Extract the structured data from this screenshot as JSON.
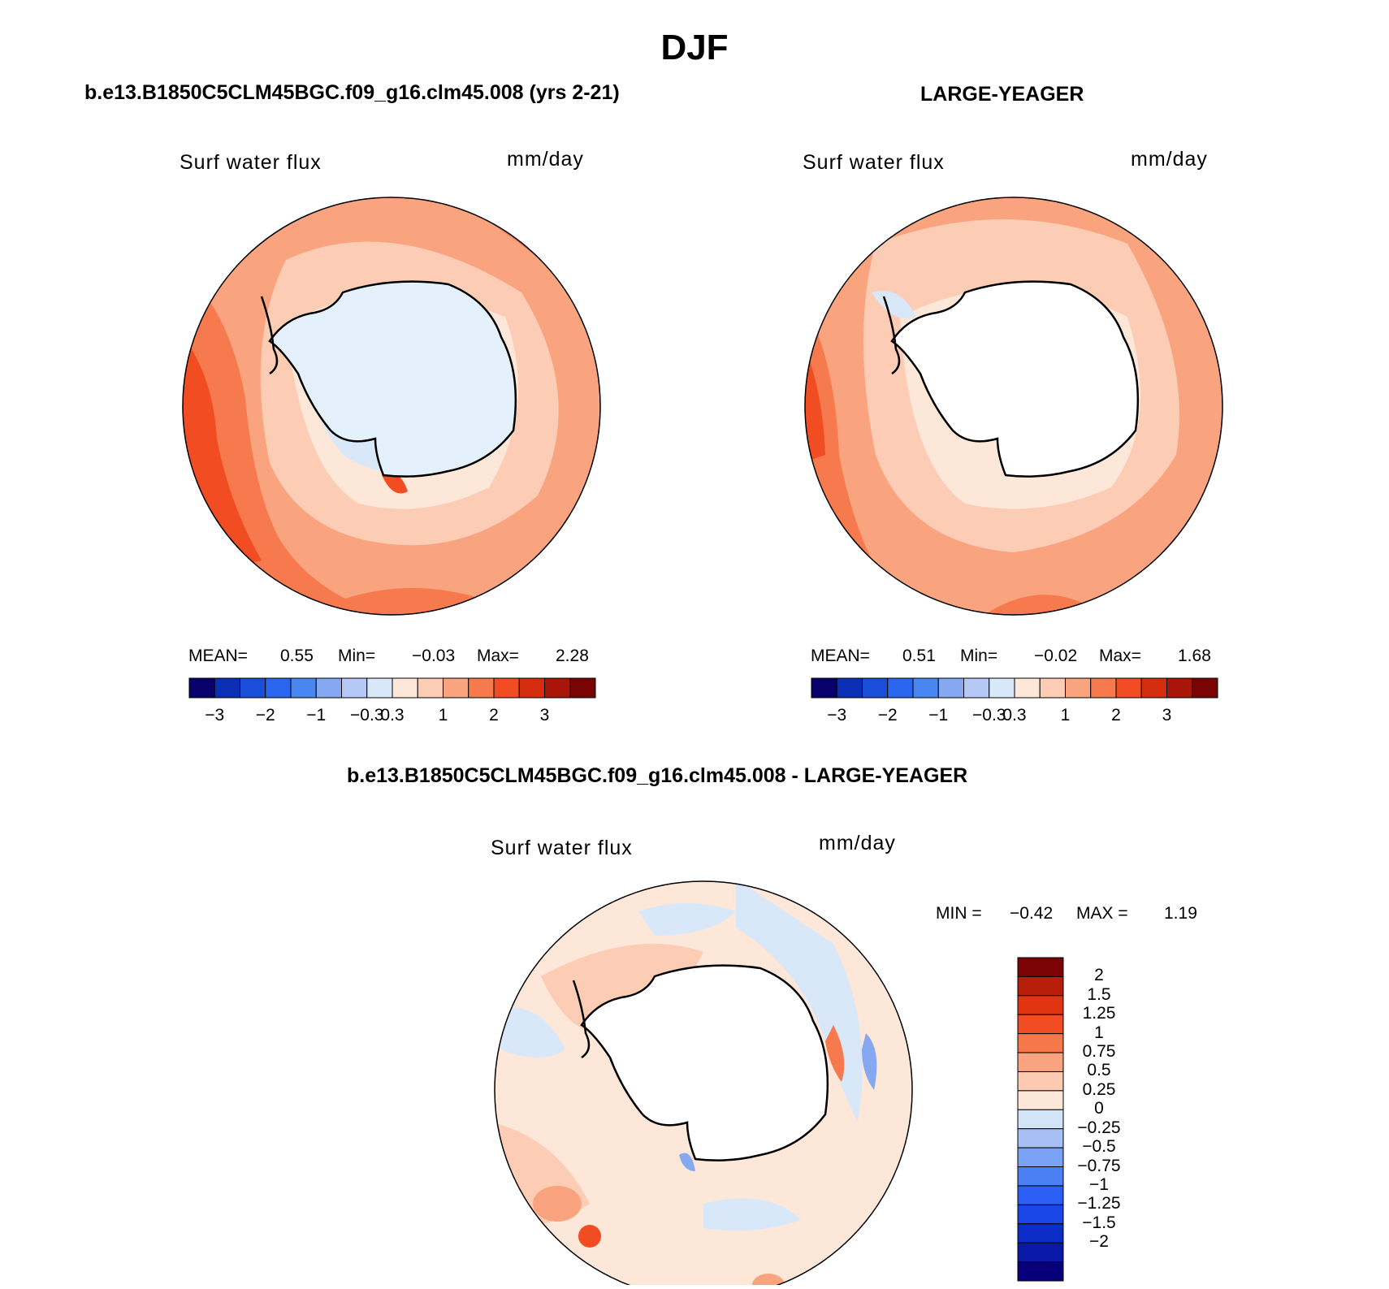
{
  "title": "DJF",
  "panels": [
    {
      "title": "b.e13.B1850C5CLM45BGC.f09_g16.clm45.008 (yrs 2-21)",
      "variable": "Surf water flux",
      "units": "mm/day",
      "stats": {
        "mean_label": "MEAN=",
        "mean": "0.55",
        "min_label": "Min=",
        "min": "−0.03",
        "max_label": "Max=",
        "max": "2.28"
      }
    },
    {
      "title": "LARGE-YEAGER",
      "variable": "Surf water flux",
      "units": "mm/day",
      "stats": {
        "mean_label": "MEAN=",
        "mean": "0.51",
        "min_label": "Min=",
        "min": "−0.02",
        "max_label": "Max=",
        "max": "1.68"
      }
    },
    {
      "title": "b.e13.B1850C5CLM45BGC.f09_g16.clm45.008 - LARGE-YEAGER",
      "variable": "Surf water flux",
      "units": "mm/day",
      "stats": {
        "min_label": "MIN =",
        "min": "−0.42",
        "max_label": "MAX =",
        "max": "1.19"
      }
    }
  ],
  "colorbar_top": {
    "colors": [
      "#08006b",
      "#0a2fb4",
      "#1a4ed9",
      "#2a66f0",
      "#4a86f2",
      "#86a8f2",
      "#b6c8f6",
      "#d8e8f8",
      "#fde7d8",
      "#fcccb4",
      "#f9a47e",
      "#f67a4e",
      "#f24c22",
      "#d52e0e",
      "#aa1509",
      "#7a0303"
    ],
    "tick_labels": [
      "−3",
      "−2",
      "−1",
      "−0.3",
      "0.3",
      "1",
      "2",
      "3"
    ],
    "tick_bounds": [
      1,
      3,
      5,
      7,
      8,
      10,
      12,
      14
    ]
  },
  "colorbar_diff": {
    "colors": [
      "#07007a",
      "#0a1aa8",
      "#0c2ec8",
      "#1a46e6",
      "#2a5ef4",
      "#4a80f4",
      "#7aa2f4",
      "#a6c0f6",
      "#d2e4f8",
      "#fde7d8",
      "#fccab0",
      "#f9a47e",
      "#f6774a",
      "#f24c22",
      "#e03510",
      "#b81f0a",
      "#7c0303"
    ],
    "tick_labels": [
      "2",
      "1.5",
      "1.25",
      "1",
      "0.75",
      "0.5",
      "0.25",
      "0",
      "−0.25",
      "−0.5",
      "−0.75",
      "−1",
      "−1.25",
      "−1.5",
      "−2"
    ]
  },
  "chart_data": [
    {
      "type": "heatmap",
      "title": "b.e13.B1850C5CLM45BGC.f09_g16.clm45.008 (yrs 2-21)",
      "variable": "Surf water flux",
      "units": "mm/day",
      "mean": 0.55,
      "min": -0.03,
      "max": 2.28,
      "levels": [
        -3,
        -2.5,
        -2,
        -1.5,
        -1,
        -0.5,
        -0.3,
        0,
        0.3,
        0.5,
        1,
        1.5,
        2,
        2.5,
        3
      ],
      "projection": "south polar stereographic"
    },
    {
      "type": "heatmap",
      "title": "LARGE-YEAGER",
      "variable": "Surf water flux",
      "units": "mm/day",
      "mean": 0.51,
      "min": -0.02,
      "max": 1.68,
      "levels": [
        -3,
        -2.5,
        -2,
        -1.5,
        -1,
        -0.5,
        -0.3,
        0,
        0.3,
        0.5,
        1,
        1.5,
        2,
        2.5,
        3
      ],
      "projection": "south polar stereographic"
    },
    {
      "type": "heatmap",
      "title": "b.e13.B1850C5CLM45BGC.f09_g16.clm45.008 - LARGE-YEAGER",
      "variable": "Surf water flux",
      "units": "mm/day",
      "min": -0.42,
      "max": 1.19,
      "levels": [
        -2,
        -1.5,
        -1.25,
        -1,
        -0.75,
        -0.5,
        -0.25,
        0,
        0.25,
        0.5,
        0.75,
        1,
        1.25,
        1.5,
        2
      ],
      "projection": "south polar stereographic"
    }
  ]
}
